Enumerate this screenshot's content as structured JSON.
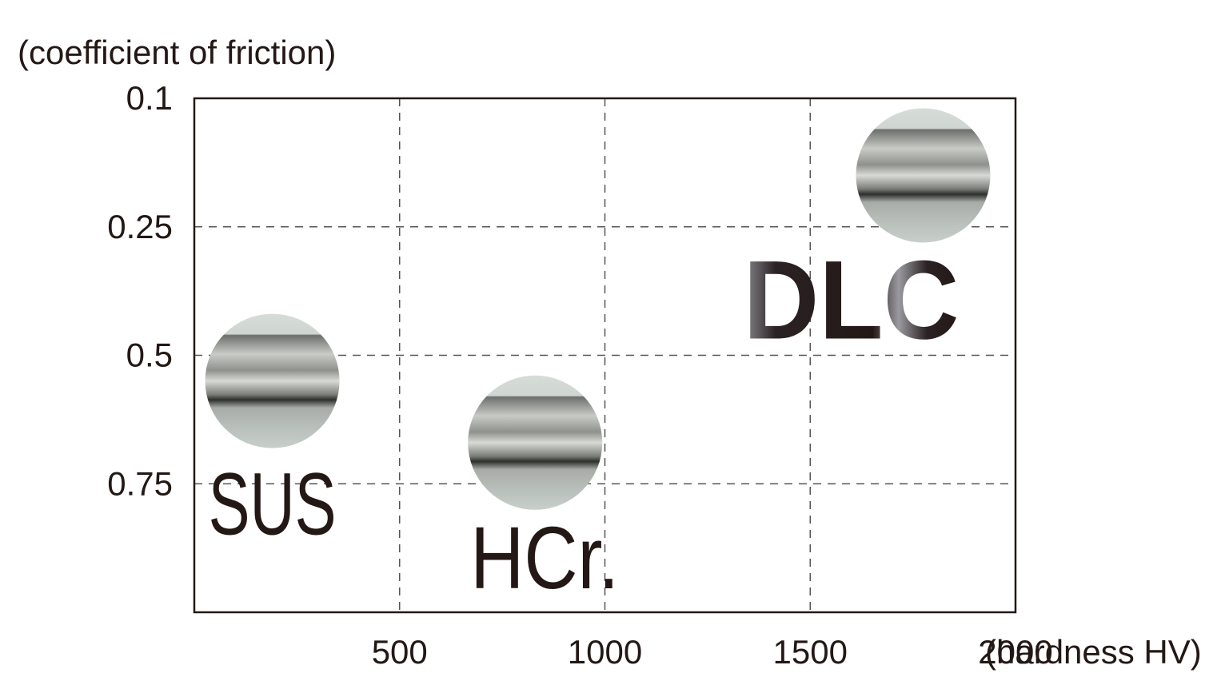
{
  "chart_data": {
    "type": "scatter",
    "y_label": "(coefficient of friction)",
    "x_label": "(hardness HV)",
    "xlim": [
      0,
      2000
    ],
    "xticks": [
      500,
      1000,
      1500,
      2000
    ],
    "ylim": [
      0.1,
      1
    ],
    "yticks": [
      0.1,
      0.25,
      0.5,
      0.75
    ],
    "y_inverted": true,
    "grid": true,
    "points": [
      {
        "label": "SUS",
        "x": 190,
        "y": 0.55
      },
      {
        "label": "HCr.",
        "x": 830,
        "y": 0.67
      },
      {
        "label": "DLC",
        "x": 1775,
        "y": 0.19
      }
    ]
  }
}
